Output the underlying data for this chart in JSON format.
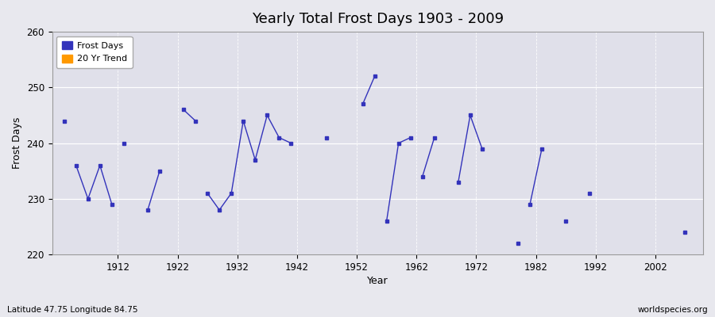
{
  "title": "Yearly Total Frost Days 1903 - 2009",
  "xlabel": "Year",
  "ylabel": "Frost Days",
  "subtitle": "Latitude 47.75 Longitude 84.75",
  "watermark": "worldspecies.org",
  "ylim": [
    220,
    260
  ],
  "yticks": [
    220,
    230,
    240,
    250,
    260
  ],
  "line_color": "#3333bb",
  "trend_color": "#ff9900",
  "fig_bg": "#e8e8ee",
  "ax_bg": "#e0e0ea",
  "xlim": [
    1901,
    2010
  ],
  "xticks": [
    1912,
    1922,
    1932,
    1942,
    1952,
    1962,
    1972,
    1982,
    1992,
    2002
  ],
  "segments": [
    [
      1903
    ],
    [
      1905,
      1907,
      1909,
      1911
    ],
    [
      1913
    ],
    [
      1917,
      1919
    ],
    [
      1923,
      1925
    ],
    [
      1927,
      1929,
      1931,
      1933,
      1935,
      1937,
      1939,
      1941
    ],
    [
      1947
    ],
    [
      1953,
      1955
    ],
    [
      1957,
      1959,
      1961
    ],
    [
      1963,
      1965
    ],
    [
      1969,
      1971,
      1973
    ],
    [
      1979
    ],
    [
      1981,
      1983
    ],
    [
      1987
    ],
    [
      1991
    ],
    [
      2007
    ]
  ],
  "segment_values": [
    [
      244
    ],
    [
      236,
      230,
      236,
      229
    ],
    [
      240
    ],
    [
      228,
      235
    ],
    [
      246,
      244
    ],
    [
      231,
      228,
      231,
      244,
      237,
      245,
      241,
      240
    ],
    [
      241
    ],
    [
      247,
      252
    ],
    [
      226,
      240,
      241
    ],
    [
      234,
      241
    ],
    [
      233,
      245,
      239
    ],
    [
      222
    ],
    [
      229,
      239
    ],
    [
      226
    ],
    [
      231
    ],
    [
      224
    ]
  ]
}
